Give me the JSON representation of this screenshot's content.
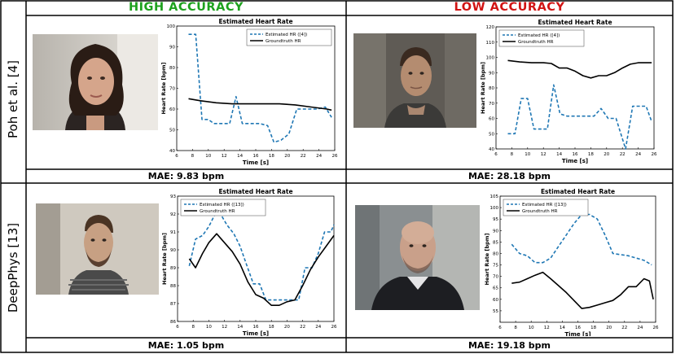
{
  "headers": {
    "high": {
      "label": "HIGH ACCURACY",
      "color": "#1ea11e"
    },
    "low": {
      "label": "LOW ACCURACY",
      "color": "#d11414"
    }
  },
  "rows": [
    {
      "label": "Poh et al. [4]"
    },
    {
      "label": "DeepPhys [13]"
    }
  ],
  "mae": [
    "MAE: 9.83 bpm",
    "MAE: 28.18 bpm",
    "MAE: 1.05 bpm",
    "MAE: 19.18 bpm"
  ],
  "colors": {
    "estimated": "#1f77b4",
    "groundtruth": "#000000"
  },
  "chart_data": [
    {
      "type": "line",
      "title": "Estimated Heart Rate",
      "xlabel": "Time [s]",
      "ylabel": "Heart Rate [bpm]",
      "xlim": [
        6,
        26
      ],
      "ylim": [
        40,
        100
      ],
      "xticks": [
        6,
        8,
        10,
        12,
        14,
        16,
        18,
        20,
        22,
        24,
        26
      ],
      "yticks": [
        40,
        50,
        60,
        70,
        80,
        90,
        100
      ],
      "legend": "top-right",
      "series": [
        {
          "name": "Estimated HR ([4])",
          "style": "dashed",
          "x": [
            7.5,
            8.4,
            9.2,
            10,
            10.7,
            11.8,
            12.7,
            13.5,
            14.3,
            15.2,
            16.5,
            17.5,
            18.3,
            19.2,
            20.2,
            21.2,
            22.5,
            23.8,
            24.8,
            25.6
          ],
          "y": [
            96,
            96,
            55,
            55,
            53,
            53,
            53,
            66,
            53,
            53,
            53,
            52,
            44,
            45,
            48,
            60,
            60,
            60,
            61,
            56
          ]
        },
        {
          "name": "Groundtruth HR",
          "style": "solid",
          "x": [
            7.5,
            9,
            11,
            13,
            15,
            17,
            19,
            21,
            23,
            25,
            25.6
          ],
          "y": [
            65,
            64,
            63,
            62.5,
            62.5,
            62.5,
            62.5,
            62,
            61,
            60,
            59.5
          ]
        }
      ]
    },
    {
      "type": "line",
      "title": "Estimated Heart Rate",
      "xlabel": "Time [s]",
      "ylabel": "Heart Rate [bpm]",
      "xlim": [
        6,
        26
      ],
      "ylim": [
        40,
        120
      ],
      "xticks": [
        6,
        8,
        10,
        12,
        14,
        16,
        18,
        20,
        22,
        24,
        26
      ],
      "yticks": [
        40,
        50,
        60,
        70,
        80,
        90,
        100,
        110,
        120
      ],
      "legend": "top-left",
      "series": [
        {
          "name": "Estimated HR ([4])",
          "style": "dashed",
          "x": [
            7.5,
            8.4,
            9.2,
            10,
            10.8,
            11.6,
            12.5,
            13.3,
            14.1,
            15,
            16.5,
            17.5,
            18.4,
            19.3,
            20.2,
            21.2,
            22.4,
            23.3,
            24.3,
            25,
            25.7
          ],
          "y": [
            50,
            50,
            73,
            73,
            53,
            53,
            53,
            82,
            63,
            61.5,
            61.5,
            61.5,
            61.5,
            66.5,
            60,
            60,
            40,
            68,
            68,
            68,
            58
          ]
        },
        {
          "name": "Groundtruth HR",
          "style": "solid",
          "x": [
            7.5,
            9,
            10.5,
            12,
            13,
            14,
            15,
            16,
            17,
            18,
            19,
            20,
            21,
            22,
            23,
            24,
            25,
            25.7
          ],
          "y": [
            98,
            97,
            96.5,
            96.5,
            96,
            93,
            93,
            91,
            88,
            86.5,
            88,
            88,
            90,
            93,
            95.5,
            96.5,
            96.5,
            96.5
          ]
        }
      ]
    },
    {
      "type": "line",
      "title": "Estimated Heart Rate",
      "xlabel": "Time [s]",
      "ylabel": "Heart Rate [bpm]",
      "xlim": [
        6,
        26
      ],
      "ylim": [
        86,
        93
      ],
      "xticks": [
        6,
        8,
        10,
        12,
        14,
        16,
        18,
        20,
        22,
        24,
        26
      ],
      "yticks": [
        86,
        87,
        88,
        89,
        90,
        91,
        92,
        93
      ],
      "legend": "top-left",
      "series": [
        {
          "name": "Estimated HR ([13])",
          "style": "dashed",
          "x": [
            7.5,
            8.3,
            9.2,
            10,
            10.8,
            11.5,
            12.3,
            13.2,
            14,
            14.8,
            15.7,
            16.5,
            17.3,
            18.2,
            19,
            19.8,
            20.7,
            21.5,
            22.3,
            23.2,
            24,
            24.8,
            25.6,
            26
          ],
          "y": [
            89.1,
            90.6,
            90.8,
            91.3,
            92,
            92,
            91.4,
            90.9,
            90.2,
            89.2,
            88.1,
            88.1,
            87.2,
            87.2,
            87.2,
            87.2,
            87.2,
            87.2,
            89,
            89,
            89.8,
            91,
            91,
            91.4
          ]
        },
        {
          "name": "Groundtruth HR",
          "style": "solid",
          "x": [
            7.5,
            8.3,
            9.2,
            10,
            11,
            12,
            13,
            14,
            15,
            16,
            17,
            18,
            19,
            20,
            21,
            22,
            23,
            24,
            25,
            26
          ],
          "y": [
            89.5,
            89,
            89.8,
            90.4,
            90.9,
            90.4,
            89.9,
            89.2,
            88.2,
            87.5,
            87.3,
            86.9,
            86.9,
            87.1,
            87.2,
            88,
            88.9,
            89.6,
            90.2,
            90.8
          ]
        }
      ]
    },
    {
      "type": "line",
      "title": "Estimated Heart Rate",
      "xlabel": "Time [s]",
      "ylabel": "Heart Rate [bpm]",
      "xlim": [
        6,
        26
      ],
      "ylim": [
        50,
        105
      ],
      "xticks": [
        6,
        8,
        10,
        12,
        14,
        16,
        18,
        20,
        22,
        24,
        26
      ],
      "yticks": [
        55,
        60,
        65,
        70,
        75,
        80,
        85,
        90,
        95,
        100,
        105
      ],
      "legend": "top-left",
      "series": [
        {
          "name": "Estimated HR ([13])",
          "style": "dashed",
          "x": [
            7.5,
            8.5,
            9.5,
            10.5,
            11.5,
            12.5,
            13.5,
            14.5,
            15.5,
            16.5,
            17.5,
            18.5,
            19.5,
            20.5,
            21.5,
            22.5,
            23.5,
            24.5,
            25.5
          ],
          "y": [
            84,
            80,
            79,
            76,
            76,
            78,
            83,
            88,
            93,
            97,
            97,
            95,
            88,
            80,
            79.5,
            79,
            78,
            77,
            75
          ]
        },
        {
          "name": "Groundtruth HR",
          "style": "solid",
          "x": [
            7.5,
            8.5,
            9.5,
            10.5,
            11.5,
            12.5,
            13.5,
            14.5,
            15.5,
            16.5,
            17.5,
            18.5,
            19.5,
            20.5,
            21.5,
            22.5,
            23.5,
            24.5,
            25.2,
            25.7
          ],
          "y": [
            67,
            67.5,
            69,
            70.5,
            71.8,
            69,
            66,
            63,
            59.5,
            56,
            56.5,
            57.5,
            58.5,
            59.5,
            62,
            65.5,
            65.5,
            69,
            68,
            60
          ]
        }
      ]
    }
  ]
}
